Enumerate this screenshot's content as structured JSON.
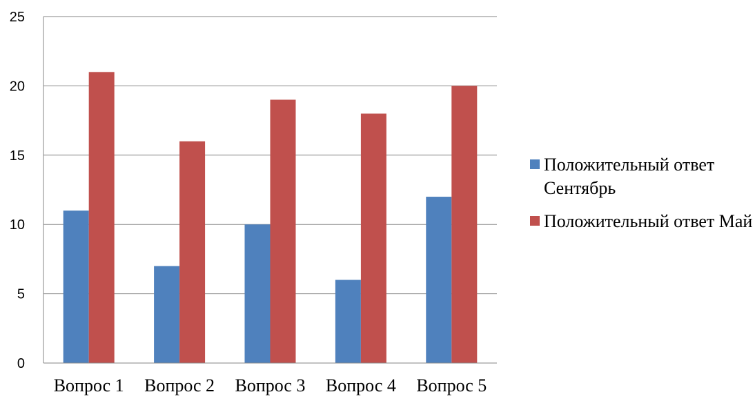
{
  "chart_data": {
    "type": "bar",
    "categories": [
      "Вопрос 1",
      "Вопрос 2",
      "Вопрос 3",
      "Вопрос 4",
      "Вопрос 5"
    ],
    "series": [
      {
        "name": "Положительный ответ Сентябрь",
        "values": [
          11,
          7,
          10,
          6,
          12
        ],
        "color": "#4F81BD"
      },
      {
        "name": "Положительный ответ Май",
        "values": [
          21,
          16,
          19,
          18,
          20
        ],
        "color": "#C0504D"
      }
    ],
    "yticks": [
      "0",
      "5",
      "10",
      "15",
      "20",
      "25"
    ],
    "ylim": [
      0,
      25
    ],
    "grid": true,
    "legend_position": "right"
  }
}
